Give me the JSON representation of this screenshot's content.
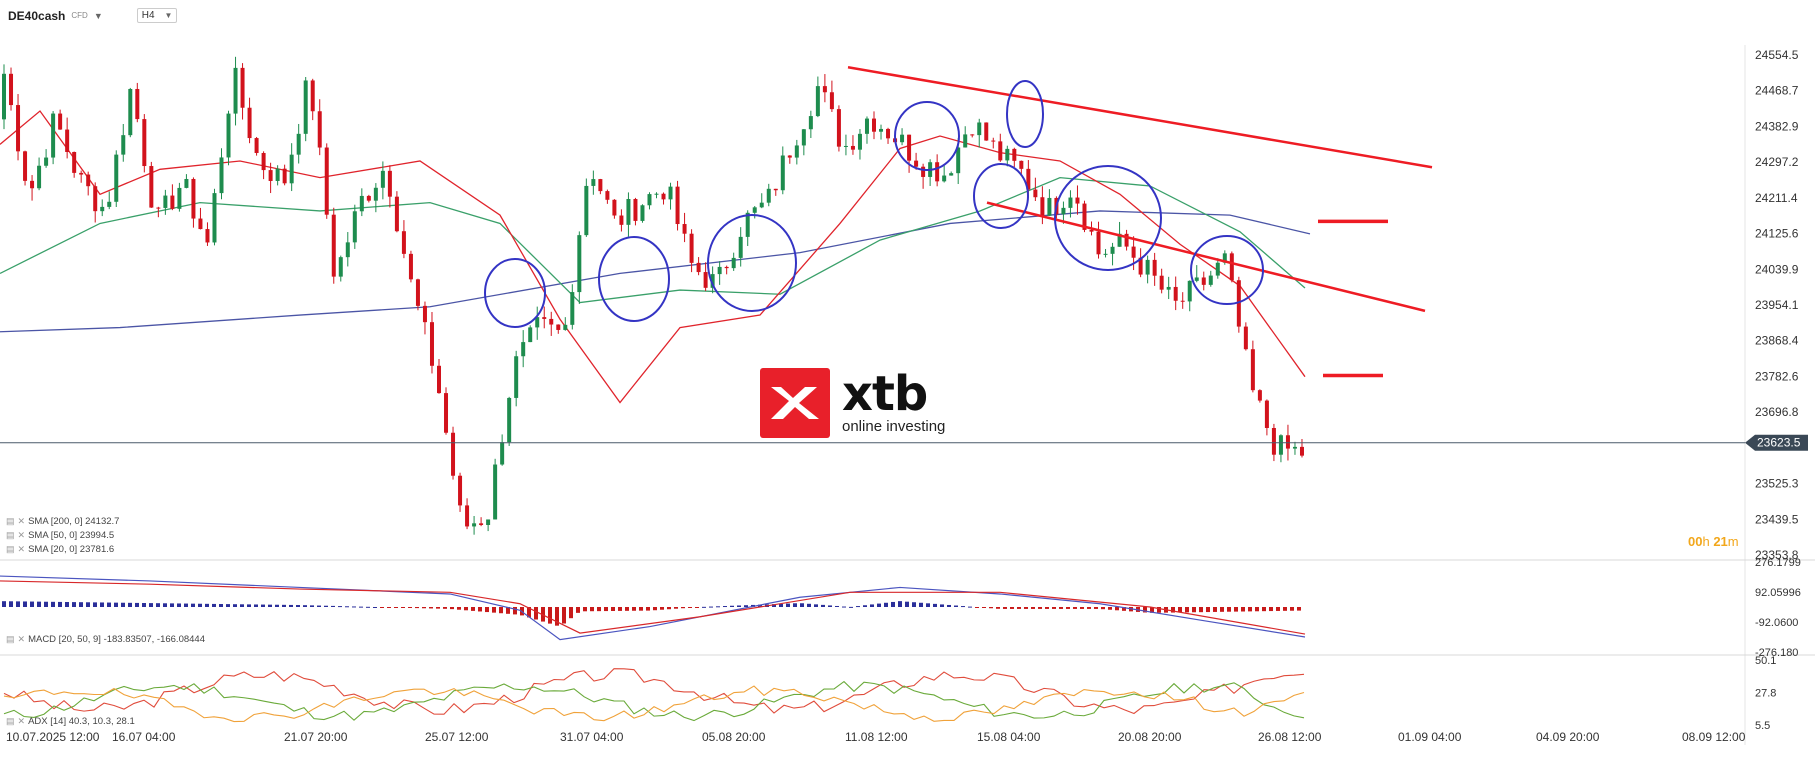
{
  "header": {
    "symbol": "DE40cash",
    "instrument_type": "CFD",
    "timeframe": "H4",
    "dropdown_icon": "caret-down-icon"
  },
  "logo": {
    "word": "xtb",
    "tagline": "online investing",
    "brand_color": "#e8202a"
  },
  "countdown": {
    "hours": "00",
    "h_label": "h",
    "minutes": "21",
    "m_label": "m",
    "color": "#f2a71b"
  },
  "legend": {
    "sma200": "SMA [200, 0]  24132.7",
    "sma50": "SMA [50, 0]  23994.5",
    "sma20": "SMA [20, 0]  23781.6",
    "macd": "MACD [20, 50, 9]  -183.83507,  -166.08444",
    "adx": "ADX [14]  40.3,  10.3,  28.1"
  },
  "colors": {
    "up": "#1e8c4e",
    "down": "#d2121c",
    "sma200": "#4b55a6",
    "sma50": "#3aa06a",
    "sma20": "#e0242c",
    "annotation_circle": "#3434c4",
    "trend_line": "#ee1c24",
    "adx": "#e04c3c",
    "plus_di": "#6aaa3a",
    "minus_di": "#f0a23a"
  },
  "chart_data": [
    {
      "type": "candlestick",
      "title": "DE40cash H4",
      "y_ticks": [
        "24554.5",
        "24468.7",
        "24382.9",
        "24297.2",
        "24211.4",
        "24125.6",
        "24039.9",
        "23954.1",
        "23868.4",
        "23782.6",
        "23696.8",
        "23623.5",
        "23525.3",
        "23439.5",
        "23353.8"
      ],
      "ylim": [
        23353.8,
        24554.5
      ],
      "last_price": "23623.5",
      "x_ticks": [
        "10.07.2025   12:00",
        "16.07  04:00",
        "21.07  20:00",
        "25.07  12:00",
        "31.07  04:00",
        "05.08  20:00",
        "11.08  12:00",
        "15.08  04:00",
        "20.08  20:00",
        "26.08  12:00",
        "01.09  04:00",
        "04.09  20:00",
        "08.09  12:00"
      ],
      "ohlc_anchors": [
        [
          "10.07 12:00",
          24510
        ],
        [
          "13.07",
          24220
        ],
        [
          "14.07",
          24400
        ],
        [
          "16.07 04:00",
          24250
        ],
        [
          "17.07",
          24180
        ],
        [
          "18.07",
          24480
        ],
        [
          "21.07 20:00",
          24150
        ],
        [
          "22.07",
          24250
        ],
        [
          "23.07",
          24100
        ],
        [
          "24.07",
          24510
        ],
        [
          "25.07 12:00",
          24300
        ],
        [
          "26.07",
          24250
        ],
        [
          "27.07",
          24500
        ],
        [
          "28.07",
          24020
        ],
        [
          "29.07",
          24200
        ],
        [
          "30.07",
          24290
        ],
        [
          "31.07 04:00",
          24000
        ],
        [
          "01.08 a",
          23780
        ],
        [
          "01.08 b",
          23420
        ],
        [
          "02.08",
          23450
        ],
        [
          "03.08",
          23800
        ],
        [
          "04.08",
          23900
        ],
        [
          "05.08 20:00",
          23880
        ],
        [
          "06.08",
          24300
        ],
        [
          "07.08",
          24150
        ],
        [
          "08.08",
          24200
        ],
        [
          "09.08",
          24240
        ],
        [
          "10.08",
          24050
        ],
        [
          "11.08 12:00",
          24000
        ],
        [
          "12.08",
          24150
        ],
        [
          "13.08",
          24200
        ],
        [
          "14.08",
          24350
        ],
        [
          "15.08 04:00",
          24480
        ],
        [
          "16.08",
          24330
        ],
        [
          "17.08",
          24410
        ],
        [
          "18.08",
          24360
        ],
        [
          "19.08",
          24300
        ],
        [
          "20.08 20:00",
          24270
        ],
        [
          "21.08",
          24400
        ],
        [
          "22.08",
          24320
        ],
        [
          "23.08",
          24270
        ],
        [
          "24.08",
          24180
        ],
        [
          "25.08",
          24240
        ],
        [
          "26.08 12:00",
          24080
        ],
        [
          "27.08",
          24100
        ],
        [
          "28.08",
          24030
        ],
        [
          "29.08",
          23950
        ],
        [
          "30.08",
          24000
        ],
        [
          "01.09 04:00",
          24060
        ],
        [
          "01.09 b",
          23750
        ],
        [
          "02.09",
          23610
        ],
        [
          "03.09",
          23600
        ]
      ],
      "sma200": [
        [
          0,
          23890
        ],
        [
          120,
          23900
        ],
        [
          300,
          23930
        ],
        [
          430,
          23950
        ],
        [
          620,
          24030
        ],
        [
          800,
          24080
        ],
        [
          950,
          24150
        ],
        [
          1100,
          24180
        ],
        [
          1230,
          24170
        ],
        [
          1310,
          24125
        ]
      ],
      "sma50": [
        [
          0,
          24030
        ],
        [
          100,
          24150
        ],
        [
          200,
          24200
        ],
        [
          320,
          24180
        ],
        [
          430,
          24200
        ],
        [
          500,
          24150
        ],
        [
          580,
          23960
        ],
        [
          680,
          23990
        ],
        [
          780,
          23980
        ],
        [
          880,
          24110
        ],
        [
          980,
          24180
        ],
        [
          1060,
          24260
        ],
        [
          1150,
          24240
        ],
        [
          1240,
          24130
        ],
        [
          1305,
          23995
        ]
      ],
      "sma20": [
        [
          0,
          24340
        ],
        [
          40,
          24420
        ],
        [
          100,
          24220
        ],
        [
          160,
          24280
        ],
        [
          240,
          24300
        ],
        [
          320,
          24260
        ],
        [
          420,
          24300
        ],
        [
          500,
          24170
        ],
        [
          560,
          23920
        ],
        [
          620,
          23720
        ],
        [
          680,
          23900
        ],
        [
          760,
          23930
        ],
        [
          840,
          24150
        ],
        [
          900,
          24330
        ],
        [
          940,
          24360
        ],
        [
          1000,
          24320
        ],
        [
          1060,
          24300
        ],
        [
          1120,
          24220
        ],
        [
          1180,
          24100
        ],
        [
          1240,
          24000
        ],
        [
          1305,
          23782
        ]
      ],
      "annotations": {
        "resistance_line": [
          [
            848,
            24525
          ],
          [
            1432,
            24285
          ]
        ],
        "support_line": [
          [
            987,
            24200
          ],
          [
            1425,
            23940
          ]
        ],
        "target_levels": [
          24155,
          23785
        ],
        "circled_regions": 9
      }
    },
    {
      "type": "bar+line",
      "title": "MACD [20, 50, 9]",
      "y_ticks": [
        "276.1799",
        "92.05996",
        "-92.0600",
        "-276.180"
      ],
      "ylim": [
        -276.18,
        276.18
      ],
      "macd_line": [
        [
          0,
          190
        ],
        [
          150,
          160
        ],
        [
          300,
          120
        ],
        [
          450,
          80
        ],
        [
          520,
          -20
        ],
        [
          560,
          -200
        ],
        [
          650,
          -120
        ],
        [
          800,
          60
        ],
        [
          900,
          120
        ],
        [
          1000,
          80
        ],
        [
          1100,
          20
        ],
        [
          1200,
          -80
        ],
        [
          1305,
          -184
        ]
      ],
      "signal_line": [
        [
          0,
          160
        ],
        [
          150,
          140
        ],
        [
          300,
          110
        ],
        [
          450,
          90
        ],
        [
          520,
          20
        ],
        [
          580,
          -160
        ],
        [
          700,
          -60
        ],
        [
          850,
          90
        ],
        [
          1000,
          90
        ],
        [
          1150,
          0
        ],
        [
          1305,
          -166
        ]
      ]
    },
    {
      "type": "line",
      "title": "ADX [14]",
      "y_ticks": [
        "50.1",
        "27.8",
        "5.5"
      ],
      "ylim": [
        5.5,
        50.1
      ],
      "values": {
        "adx": 40.3,
        "plus_di": 10.3,
        "minus_di": 28.1
      }
    }
  ]
}
